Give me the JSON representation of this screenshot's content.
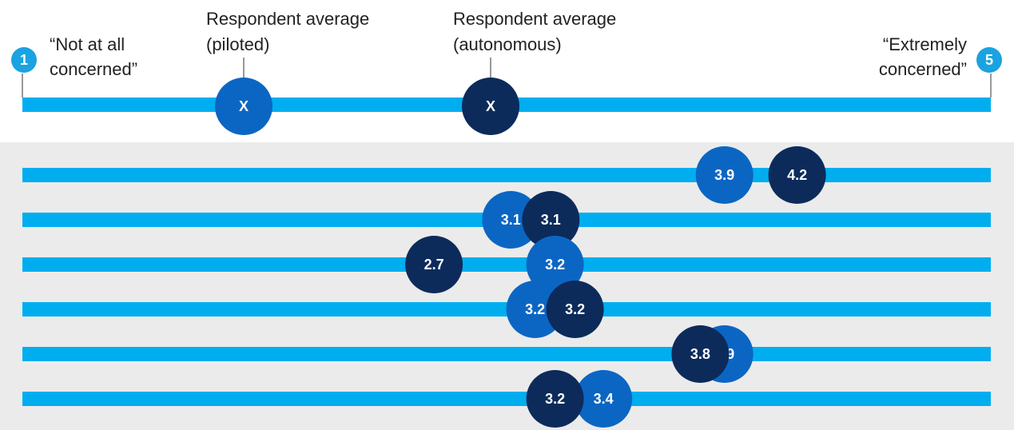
{
  "chart_data": {
    "type": "dot",
    "xlim": [
      1,
      5
    ],
    "xticks": [
      1,
      5
    ],
    "scale_labels": [
      [
        "“Not at all",
        "concerned”"
      ],
      [
        "“Extremely",
        "concerned”"
      ]
    ],
    "legend_marker": "X",
    "series": [
      {
        "name": [
          "Respondent average",
          "(piloted)"
        ],
        "color": "#0b66c3",
        "values": [
          3.9,
          3.1,
          3.2,
          3.2,
          3.9,
          3.4
        ]
      },
      {
        "name": [
          "Respondent average",
          "(autonomous)"
        ],
        "color": "#0c2b5b",
        "values": [
          4.2,
          3.1,
          2.7,
          3.2,
          3.8,
          3.2
        ]
      }
    ]
  }
}
